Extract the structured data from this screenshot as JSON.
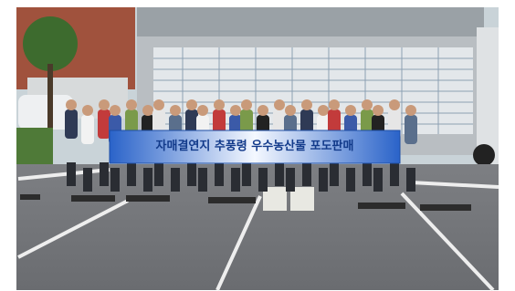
{
  "banner": {
    "title": "자매결연지 추풍령 우수농산물 포도판매"
  }
}
